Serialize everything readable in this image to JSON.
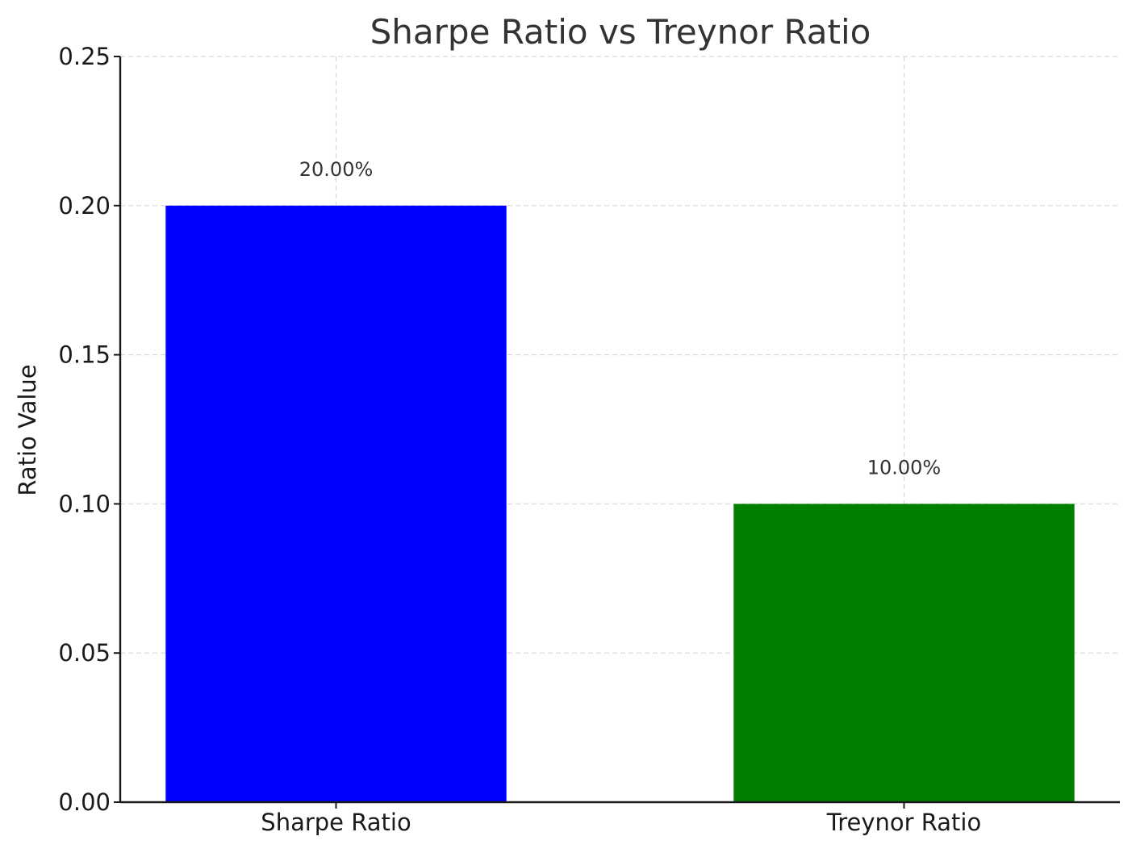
{
  "chart_data": {
    "type": "bar",
    "title": "Sharpe Ratio vs Treynor Ratio",
    "xlabel": "",
    "ylabel": "Ratio Value",
    "categories": [
      "Sharpe Ratio",
      "Treynor Ratio"
    ],
    "values": [
      0.2,
      0.1
    ],
    "data_labels": [
      "20.00%",
      "10.00%"
    ],
    "colors": [
      "#0000ff",
      "#008000"
    ],
    "ylim": [
      0,
      0.25
    ],
    "yticks": [
      0.0,
      0.05,
      0.1,
      0.15,
      0.2,
      0.25
    ],
    "ytick_labels": [
      "0.00",
      "0.05",
      "0.10",
      "0.15",
      "0.20",
      "0.25"
    ],
    "grid": true,
    "legend": "none"
  }
}
